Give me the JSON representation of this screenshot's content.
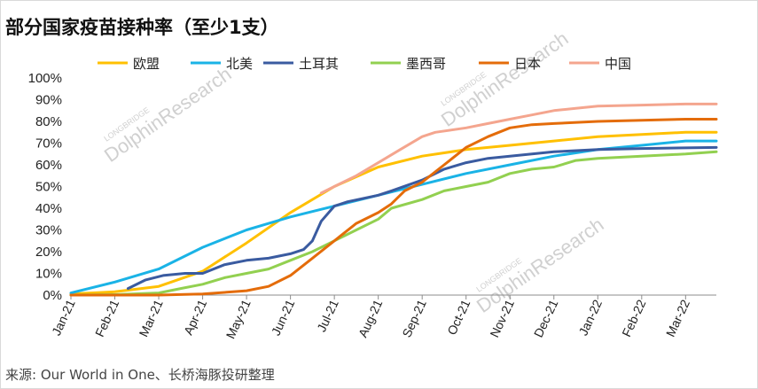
{
  "chart_data": {
    "type": "line",
    "title": "部分国家疫苗接种率（至少1支）",
    "source": "来源: Our World in One、长桥海豚投研整理",
    "watermark": {
      "main": "DolphinResearch",
      "sub": "LONGBRIDGE"
    },
    "xlabel": "",
    "ylabel": "",
    "ylim": [
      0,
      100
    ],
    "yticks": [
      "0%",
      "10%",
      "20%",
      "30%",
      "40%",
      "50%",
      "60%",
      "70%",
      "80%",
      "90%",
      "100%"
    ],
    "x_categories": [
      "Jan-21",
      "Feb-21",
      "Mar-21",
      "Apr-21",
      "May-21",
      "Jun-21",
      "Jul-21",
      "Aug-21",
      "Sep-21",
      "Oct-21",
      "Nov-21",
      "Dec-21",
      "Jan-22",
      "Feb-22",
      "Mar-22"
    ],
    "x_end": 14.7,
    "grid": false,
    "legend": "top",
    "series": [
      {
        "name": "欧盟",
        "color": "#FFC000",
        "points": [
          [
            0,
            0.5
          ],
          [
            1,
            1.5
          ],
          [
            2,
            4
          ],
          [
            3,
            11
          ],
          [
            4,
            24
          ],
          [
            5,
            38
          ],
          [
            6,
            50
          ],
          [
            7,
            59
          ],
          [
            8,
            64
          ],
          [
            9,
            67
          ],
          [
            10,
            69
          ],
          [
            11,
            71
          ],
          [
            12,
            73
          ],
          [
            13,
            74
          ],
          [
            14,
            75
          ],
          [
            14.7,
            75
          ]
        ]
      },
      {
        "name": "北美",
        "color": "#1AB3E6",
        "points": [
          [
            0,
            1
          ],
          [
            1,
            6
          ],
          [
            2,
            12
          ],
          [
            3,
            22
          ],
          [
            4,
            30
          ],
          [
            5,
            36
          ],
          [
            6,
            41
          ],
          [
            7,
            46
          ],
          [
            8,
            51
          ],
          [
            9,
            56
          ],
          [
            10,
            60
          ],
          [
            11,
            64
          ],
          [
            12,
            67
          ],
          [
            13,
            69
          ],
          [
            14,
            71
          ],
          [
            14.7,
            71
          ]
        ]
      },
      {
        "name": "土耳其",
        "color": "#3A5BA0",
        "points": [
          [
            1.3,
            3
          ],
          [
            1.7,
            7
          ],
          [
            2.1,
            9
          ],
          [
            2.6,
            10
          ],
          [
            3,
            10
          ],
          [
            3.5,
            14
          ],
          [
            4,
            16
          ],
          [
            4.5,
            17
          ],
          [
            5,
            19
          ],
          [
            5.3,
            21
          ],
          [
            5.5,
            25
          ],
          [
            5.7,
            34
          ],
          [
            6,
            41
          ],
          [
            6.3,
            43
          ],
          [
            7,
            46
          ],
          [
            7.3,
            48
          ],
          [
            8,
            53
          ],
          [
            8.5,
            58
          ],
          [
            9,
            61
          ],
          [
            9.5,
            63
          ],
          [
            10,
            64
          ],
          [
            11,
            66
          ],
          [
            12,
            67
          ],
          [
            13,
            67.5
          ],
          [
            14.7,
            68
          ]
        ]
      },
      {
        "name": "墨西哥",
        "color": "#92D050",
        "points": [
          [
            0,
            0
          ],
          [
            1,
            0.2
          ],
          [
            2,
            1
          ],
          [
            2.5,
            3
          ],
          [
            3,
            5
          ],
          [
            3.5,
            8
          ],
          [
            4,
            10
          ],
          [
            4.5,
            12
          ],
          [
            5,
            16
          ],
          [
            5.5,
            20
          ],
          [
            6,
            25
          ],
          [
            6.5,
            30
          ],
          [
            7,
            35
          ],
          [
            7.3,
            40
          ],
          [
            8,
            44
          ],
          [
            8.5,
            48
          ],
          [
            9,
            50
          ],
          [
            9.5,
            52
          ],
          [
            10,
            56
          ],
          [
            10.5,
            58
          ],
          [
            11,
            59
          ],
          [
            11.5,
            62
          ],
          [
            12,
            63
          ],
          [
            13,
            64
          ],
          [
            14,
            65
          ],
          [
            14.7,
            66
          ]
        ]
      },
      {
        "name": "日本",
        "color": "#E46C0A",
        "points": [
          [
            0,
            0
          ],
          [
            1,
            0
          ],
          [
            2,
            0
          ],
          [
            3,
            0.5
          ],
          [
            4,
            2
          ],
          [
            4.5,
            4
          ],
          [
            5,
            9
          ],
          [
            5.5,
            17
          ],
          [
            6,
            25
          ],
          [
            6.5,
            33
          ],
          [
            7,
            38
          ],
          [
            7.3,
            42
          ],
          [
            7.6,
            48
          ],
          [
            8,
            52
          ],
          [
            8.5,
            60
          ],
          [
            9,
            68
          ],
          [
            9.5,
            73
          ],
          [
            10,
            77
          ],
          [
            10.5,
            78.5
          ],
          [
            11,
            79
          ],
          [
            12,
            80
          ],
          [
            13,
            80.5
          ],
          [
            14,
            81
          ],
          [
            14.7,
            81
          ]
        ]
      },
      {
        "name": "中国",
        "color": "#F4A58E",
        "points": [
          [
            5.7,
            47
          ],
          [
            6,
            50
          ],
          [
            6.5,
            55
          ],
          [
            7,
            61
          ],
          [
            7.5,
            67
          ],
          [
            8,
            73
          ],
          [
            8.3,
            75
          ],
          [
            9,
            77
          ],
          [
            9.5,
            79
          ],
          [
            10,
            81
          ],
          [
            10.5,
            83
          ],
          [
            11,
            85
          ],
          [
            11.5,
            86
          ],
          [
            12,
            87
          ],
          [
            13,
            87.5
          ],
          [
            14,
            88
          ],
          [
            14.7,
            88
          ]
        ]
      }
    ]
  }
}
